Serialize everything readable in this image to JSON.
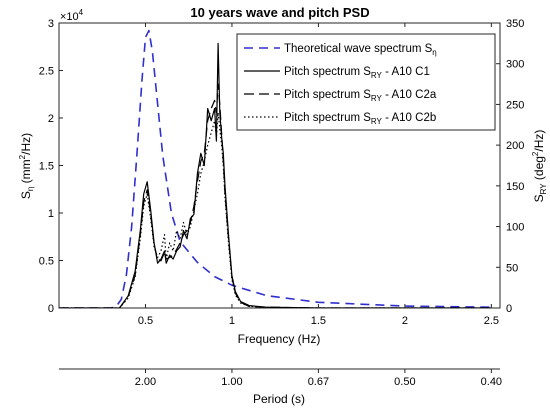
{
  "chart_data": {
    "type": "line",
    "title": "10 years wave and pitch PSD",
    "xlabel": "Frequency (Hz)",
    "xlim": [
      0,
      2.55
    ],
    "xticks": [
      0.5,
      1,
      1.5,
      2,
      2.5
    ],
    "xtick_labels": [
      "0.5",
      "1",
      "1.5",
      "2",
      "2.5"
    ],
    "y_left": {
      "label_main": "S",
      "label_sub": "η",
      "label_rest": " (mm",
      "label_sup": "2",
      "label_end": "/Hz)",
      "exponent_label": "×10",
      "exponent_power": "4",
      "lim": [
        0,
        30000
      ],
      "ticks": [
        0,
        0.5,
        1,
        1.5,
        2,
        2.5,
        3
      ],
      "tick_labels": [
        "0",
        "0.5",
        "1",
        "1.5",
        "2",
        "2.5",
        "3"
      ]
    },
    "y_right": {
      "label_main": "S",
      "label_sub": "RY",
      "label_rest": " (deg",
      "label_sup": "2",
      "label_end": "/Hz)",
      "lim": [
        0,
        350
      ],
      "ticks": [
        0,
        50,
        100,
        150,
        200,
        250,
        300,
        350
      ],
      "tick_labels": [
        "0",
        "50",
        "100",
        "150",
        "200",
        "250",
        "300",
        "350"
      ]
    },
    "secondary_x": {
      "label": "Period (s)",
      "ticks_at_frequency": [
        0.5,
        1,
        1.5,
        2,
        2.5
      ],
      "tick_labels": [
        "2.00",
        "1.00",
        "0.67",
        "0.50",
        "0.40"
      ]
    },
    "legend_position": "top-right",
    "series": [
      {
        "name": "Theoretical wave spectrum S",
        "name_sub": "η",
        "name_tail": "",
        "axis": "left",
        "color": "#2f2fd0",
        "dash": "9,6",
        "x": [
          0.0,
          0.3,
          0.33,
          0.36,
          0.39,
          0.42,
          0.45,
          0.48,
          0.5,
          0.52,
          0.54,
          0.57,
          0.6,
          0.65,
          0.7,
          0.8,
          0.9,
          1.0,
          1.2,
          1.5,
          2.0,
          2.5
        ],
        "y": [
          0,
          0,
          150,
          900,
          3500,
          8500,
          16000,
          24000,
          28500,
          29200,
          27000,
          21500,
          16000,
          10000,
          7000,
          4800,
          3300,
          2400,
          1300,
          600,
          200,
          80
        ]
      },
      {
        "name": "Pitch spectrum S",
        "name_sub": "RY",
        "name_tail": " -   A10 C1",
        "axis": "right",
        "color": "#000000",
        "dash": "",
        "x": [
          0.0,
          0.35,
          0.4,
          0.44,
          0.47,
          0.49,
          0.51,
          0.53,
          0.55,
          0.57,
          0.59,
          0.61,
          0.62,
          0.64,
          0.66,
          0.68,
          0.7,
          0.72,
          0.74,
          0.76,
          0.78,
          0.8,
          0.82,
          0.84,
          0.86,
          0.88,
          0.9,
          0.91,
          0.92,
          0.93,
          0.94,
          0.95,
          0.96,
          0.98,
          1.0,
          1.02,
          1.05,
          1.1,
          1.2,
          1.5,
          2.0,
          2.5
        ],
        "y": [
          0,
          0,
          15,
          45,
          95,
          140,
          155,
          120,
          80,
          55,
          60,
          70,
          55,
          65,
          60,
          70,
          75,
          95,
          85,
          110,
          115,
          165,
          190,
          175,
          245,
          230,
          245,
          205,
          325,
          240,
          210,
          190,
          150,
          90,
          40,
          20,
          8,
          3,
          1,
          0,
          0,
          0
        ]
      },
      {
        "name": "Pitch spectrum S",
        "name_sub": "RY",
        "name_tail": " -   A10 C2a",
        "axis": "right",
        "color": "#000000",
        "dash": "10,5",
        "x": [
          0.0,
          0.35,
          0.4,
          0.44,
          0.47,
          0.49,
          0.51,
          0.53,
          0.55,
          0.57,
          0.59,
          0.61,
          0.62,
          0.64,
          0.66,
          0.68,
          0.7,
          0.72,
          0.74,
          0.76,
          0.78,
          0.8,
          0.82,
          0.84,
          0.86,
          0.88,
          0.9,
          0.91,
          0.92,
          0.93,
          0.94,
          0.95,
          0.96,
          0.98,
          1.0,
          1.02,
          1.05,
          1.1,
          1.2,
          1.5,
          2.0,
          2.5
        ],
        "y": [
          0,
          0,
          14,
          40,
          90,
          130,
          145,
          115,
          78,
          60,
          58,
          68,
          60,
          62,
          65,
          72,
          80,
          90,
          95,
          105,
          125,
          155,
          180,
          190,
          230,
          245,
          255,
          240,
          275,
          250,
          215,
          180,
          140,
          85,
          38,
          18,
          7,
          2,
          1,
          0,
          0,
          0
        ]
      },
      {
        "name": "Pitch spectrum S",
        "name_sub": "RY",
        "name_tail": " -   A10 C2b",
        "axis": "right",
        "color": "#000000",
        "dash": "1.5,2.5",
        "x": [
          0.0,
          0.35,
          0.4,
          0.44,
          0.47,
          0.49,
          0.51,
          0.53,
          0.55,
          0.57,
          0.59,
          0.61,
          0.62,
          0.64,
          0.66,
          0.68,
          0.7,
          0.72,
          0.74,
          0.76,
          0.78,
          0.8,
          0.82,
          0.84,
          0.86,
          0.88,
          0.9,
          0.91,
          0.92,
          0.93,
          0.94,
          0.95,
          0.96,
          0.98,
          1.0,
          1.02,
          1.05,
          1.1,
          1.2,
          1.5,
          2.0,
          2.5
        ],
        "y": [
          0,
          0,
          12,
          38,
          85,
          125,
          140,
          110,
          75,
          62,
          70,
          90,
          60,
          80,
          70,
          95,
          85,
          105,
          90,
          100,
          120,
          140,
          165,
          180,
          200,
          215,
          230,
          210,
          240,
          220,
          200,
          175,
          135,
          80,
          35,
          16,
          6,
          2,
          1,
          0,
          0,
          0
        ]
      }
    ]
  }
}
